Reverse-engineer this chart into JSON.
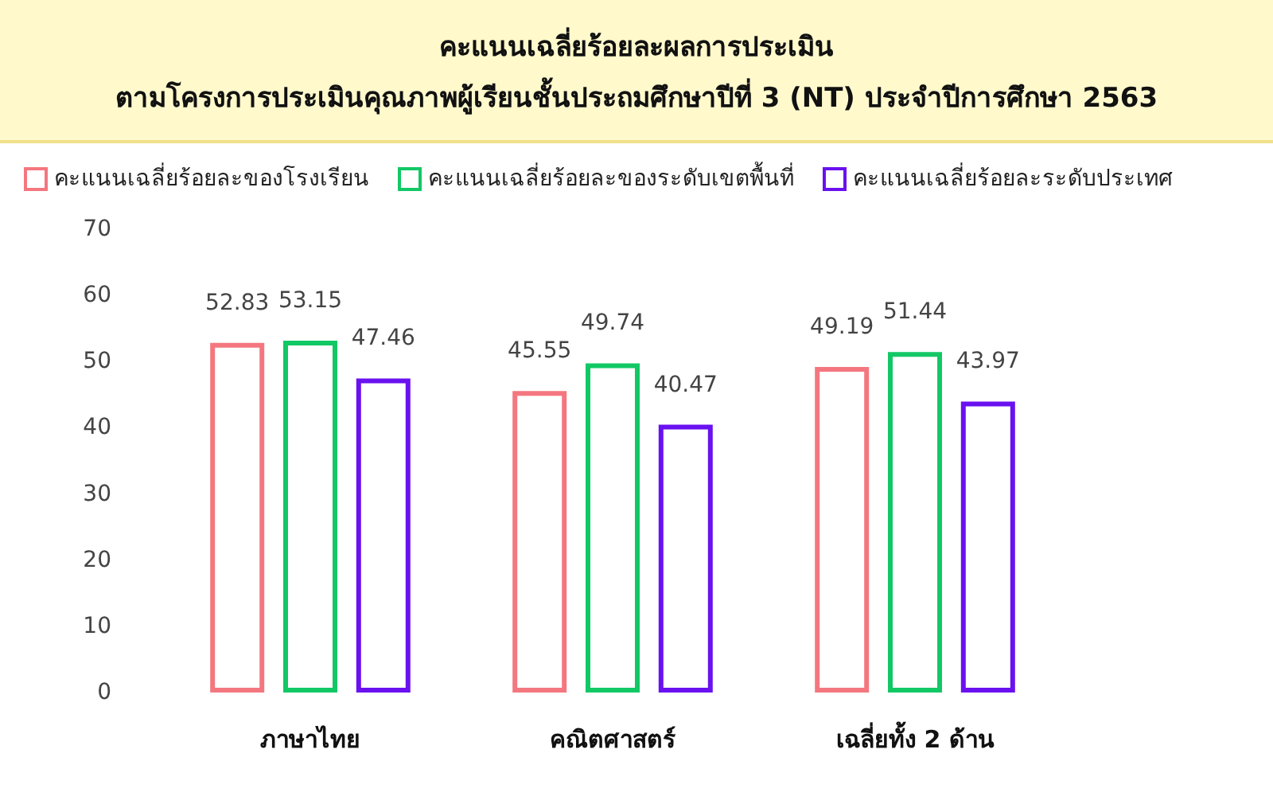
{
  "chart_data": {
    "type": "bar",
    "title": "คะแนนเฉลี่ยร้อยละผลการประเมิน",
    "subtitle": "ตามโครงการประเมินคุณภาพผู้เรียนชั้นประถมศึกษาปีที่ 3 (NT) ประจำปีการศึกษา 2563",
    "categories": [
      "ภาษาไทย",
      "คณิตศาสตร์",
      "เฉลี่ยทั้ง 2 ด้าน"
    ],
    "series": [
      {
        "name": "คะแนนเฉลี่ยร้อยละของโรงเรียน",
        "color": "#f4777f",
        "values": [
          52.83,
          45.55,
          49.19
        ]
      },
      {
        "name": "คะแนนเฉลี่ยร้อยละของระดับเขตพื้นที่",
        "color": "#12c865",
        "values": [
          53.15,
          49.74,
          51.44
        ]
      },
      {
        "name": "คะแนนเฉลี่ยร้อยละระดับประเทศ",
        "color": "#6a11f0",
        "values": [
          47.46,
          40.47,
          43.97
        ]
      }
    ],
    "ylim": [
      0,
      70
    ],
    "yticks": [
      0,
      10,
      20,
      30,
      40,
      50,
      60,
      70
    ],
    "grid": false,
    "legend": "top left",
    "data_labels": true
  }
}
